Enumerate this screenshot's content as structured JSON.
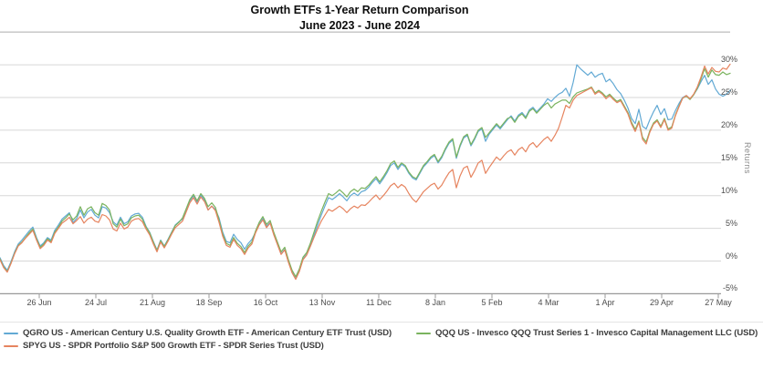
{
  "title": {
    "line1": "Growth ETFs 1-Year Return Comparison",
    "line2": "June 2023 - June 2024"
  },
  "chart_data": {
    "type": "line",
    "title": "Growth ETFs 1-Year Return Comparison",
    "subtitle": "June 2023 - June 2024",
    "ylabel": "Returns",
    "y_unit": "%",
    "ylim": [
      -5,
      35
    ],
    "grid": true,
    "legend_position": "bottom",
    "ytick_values": [
      30,
      25,
      20,
      15,
      10,
      5,
      0,
      -5
    ],
    "ytick_labels": [
      "30%",
      "25%",
      "20%",
      "15%",
      "10%",
      "5%",
      "0%",
      "-5%"
    ],
    "xtick_labels": [
      "26 Jun",
      "24 Jul",
      "21 Aug",
      "18 Sep",
      "16 Oct",
      "13 Nov",
      "11 Dec",
      "8 Jan",
      "5 Feb",
      "4 Mar",
      "1 Apr",
      "29 Apr",
      "27 May"
    ],
    "x_start": 0,
    "x_step": 4,
    "series": [
      {
        "id": "QGRO",
        "name": "QGRO US",
        "legend_label": "QGRO US - American Century U.S. Quality Growth ETF - American Century ETF Trust (USD)",
        "color": "#62a9d4",
        "values": [
          0.5,
          -0.7,
          -1.4,
          -0.1,
          1.4,
          2.6,
          3.2,
          3.9,
          4.6,
          5.2,
          3.6,
          2.3,
          2.8,
          3.6,
          3.2,
          4.7,
          5.5,
          6.4,
          6.9,
          7.4,
          5.9,
          6.5,
          7.8,
          6.6,
          7.5,
          7.9,
          7.0,
          6.6,
          8.3,
          8.1,
          7.4,
          6.0,
          5.5,
          6.7,
          5.7,
          6.0,
          6.9,
          7.2,
          7.3,
          6.7,
          5.3,
          4.4,
          3.0,
          1.7,
          3.2,
          2.3,
          3.3,
          4.4,
          5.5,
          6.0,
          6.4,
          7.8,
          9.2,
          10.0,
          9.0,
          10.1,
          9.3,
          7.8,
          8.4,
          7.9,
          6.6,
          4.4,
          3.0,
          2.8,
          4.1,
          3.3,
          2.8,
          1.8,
          2.7,
          3.3,
          4.4,
          5.6,
          6.5,
          5.3,
          5.9,
          4.1,
          2.6,
          1.1,
          1.8,
          -0.1,
          -1.7,
          -2.7,
          -1.5,
          0.3,
          1.0,
          2.3,
          3.9,
          5.5,
          7.0,
          8.4,
          9.7,
          9.4,
          9.8,
          10.3,
          9.8,
          9.2,
          10.0,
          10.4,
          10.0,
          10.6,
          10.8,
          11.3,
          12.0,
          12.6,
          11.8,
          12.6,
          13.5,
          14.6,
          15.0,
          14.0,
          14.8,
          14.4,
          13.4,
          12.7,
          12.4,
          13.4,
          14.4,
          15.0,
          15.7,
          16.1,
          15.0,
          15.8,
          17.0,
          18.0,
          18.5,
          15.7,
          17.5,
          18.8,
          19.2,
          17.6,
          18.6,
          19.8,
          20.2,
          18.3,
          19.4,
          20.1,
          20.8,
          20.2,
          20.9,
          21.6,
          22.2,
          21.4,
          22.3,
          22.7,
          22.0,
          23.1,
          23.5,
          22.8,
          23.4,
          24.0,
          24.8,
          24.4,
          25.0,
          25.5,
          25.8,
          26.4,
          25.2,
          27.3,
          30.0,
          29.4,
          28.9,
          28.4,
          28.9,
          28.1,
          28.5,
          28.7,
          27.4,
          27.8,
          27.1,
          26.2,
          25.6,
          24.6,
          23.4,
          21.8,
          21.0,
          23.2,
          20.6,
          20.2,
          21.6,
          22.8,
          23.8,
          22.4,
          23.3,
          21.6,
          21.7,
          23.0,
          24.1,
          25.0,
          25.3,
          24.8,
          25.4,
          26.3,
          27.4,
          28.4,
          27.0,
          27.7,
          26.3,
          25.5,
          25.2,
          25.5,
          26.1
        ]
      },
      {
        "id": "QQQ",
        "name": "QQQ US",
        "legend_label": "QQQ US - Invesco QQQ Trust Series 1 - Invesco Capital Management LLC (USD)",
        "color": "#7ab35e",
        "values": [
          0.3,
          -0.9,
          -1.6,
          -0.3,
          1.2,
          2.4,
          2.9,
          3.6,
          4.3,
          4.9,
          3.4,
          2.1,
          2.6,
          3.4,
          3.0,
          4.4,
          5.2,
          6.1,
          6.6,
          7.2,
          6.3,
          6.9,
          8.3,
          7.0,
          8.0,
          8.3,
          7.4,
          7.0,
          8.8,
          8.5,
          7.8,
          5.7,
          5.2,
          6.4,
          5.4,
          5.7,
          6.6,
          6.9,
          7.0,
          6.4,
          5.2,
          4.3,
          2.9,
          1.6,
          3.1,
          2.2,
          3.2,
          4.3,
          5.4,
          5.9,
          6.6,
          8.0,
          9.4,
          10.2,
          9.2,
          10.3,
          9.6,
          8.3,
          8.9,
          8.2,
          6.3,
          4.1,
          2.7,
          2.4,
          3.6,
          2.7,
          2.2,
          1.3,
          2.3,
          2.9,
          4.6,
          5.9,
          6.8,
          5.6,
          6.2,
          4.4,
          2.9,
          1.4,
          2.1,
          0.2,
          -1.4,
          -2.4,
          -1.2,
          0.6,
          1.3,
          2.7,
          4.4,
          6.1,
          7.6,
          9.0,
          10.3,
          10.0,
          10.4,
          10.9,
          10.4,
          9.8,
          10.6,
          11.0,
          10.6,
          11.2,
          11.1,
          11.6,
          12.3,
          12.9,
          12.1,
          12.9,
          13.8,
          14.9,
          15.3,
          14.3,
          15.0,
          14.6,
          13.6,
          12.9,
          12.6,
          13.6,
          14.6,
          15.2,
          15.9,
          16.3,
          15.2,
          16.0,
          17.2,
          18.2,
          18.7,
          15.9,
          17.7,
          19.0,
          19.4,
          17.8,
          18.8,
          20.0,
          20.4,
          18.9,
          19.6,
          20.3,
          21.0,
          20.4,
          21.1,
          21.8,
          22.0,
          21.2,
          22.1,
          22.5,
          21.8,
          22.9,
          23.3,
          22.6,
          23.2,
          23.8,
          24.2,
          23.4,
          24.0,
          24.3,
          24.6,
          24.6,
          24.1,
          25.1,
          25.7,
          25.9,
          26.1,
          26.3,
          26.6,
          25.7,
          26.1,
          25.7,
          25.1,
          25.5,
          24.9,
          24.4,
          24.7,
          23.7,
          22.7,
          21.2,
          20.1,
          21.4,
          18.9,
          18.2,
          19.9,
          21.1,
          21.6,
          20.6,
          21.8,
          20.2,
          20.5,
          22.3,
          23.7,
          24.9,
          25.2,
          24.7,
          25.4,
          26.4,
          27.8,
          29.4,
          28.1,
          29.2,
          28.5,
          28.4,
          28.9,
          28.5,
          28.7
        ]
      },
      {
        "id": "SPYG",
        "name": "SPYG US",
        "legend_label": "SPYG US - SPDR Portfolio S&P 500 Growth ETF - SPDR Series Trust (USD)",
        "color": "#e6845f",
        "values": [
          0.2,
          -1.0,
          -1.7,
          -0.4,
          1.1,
          2.3,
          2.8,
          3.5,
          4.1,
          4.7,
          3.2,
          1.9,
          2.4,
          3.2,
          2.8,
          4.2,
          5.0,
          5.8,
          6.2,
          6.7,
          5.7,
          6.2,
          6.8,
          5.8,
          6.4,
          6.7,
          6.1,
          5.9,
          7.1,
          6.9,
          6.3,
          4.9,
          4.6,
          5.8,
          4.9,
          5.2,
          6.1,
          6.4,
          6.5,
          6.0,
          4.9,
          4.0,
          2.6,
          1.4,
          2.9,
          2.0,
          3.0,
          4.1,
          5.1,
          5.6,
          6.1,
          7.5,
          8.9,
          9.7,
          8.7,
          9.8,
          9.1,
          7.8,
          8.4,
          7.7,
          5.9,
          3.8,
          2.4,
          2.1,
          3.3,
          2.4,
          1.9,
          1.0,
          2.0,
          2.6,
          4.3,
          5.5,
          6.3,
          5.1,
          5.8,
          4.0,
          2.5,
          1.0,
          1.7,
          -0.2,
          -1.8,
          -2.8,
          -1.6,
          0.2,
          0.9,
          2.2,
          3.6,
          4.9,
          6.1,
          7.0,
          7.9,
          7.6,
          8.0,
          8.4,
          8.0,
          7.4,
          8.0,
          8.4,
          8.1,
          8.6,
          8.5,
          9.0,
          9.6,
          10.1,
          9.4,
          10.0,
          10.7,
          11.5,
          11.9,
          11.2,
          11.7,
          11.3,
          10.3,
          9.5,
          9.0,
          9.8,
          10.6,
          11.1,
          11.6,
          11.9,
          11.0,
          11.6,
          12.6,
          13.5,
          14.0,
          11.2,
          13.0,
          14.2,
          14.5,
          12.8,
          13.8,
          15.0,
          15.4,
          13.4,
          14.3,
          15.1,
          15.9,
          15.4,
          16.1,
          16.7,
          17.0,
          16.2,
          17.0,
          17.4,
          16.7,
          17.7,
          18.1,
          17.4,
          18.0,
          18.6,
          19.0,
          18.3,
          19.2,
          20.3,
          22.0,
          23.8,
          23.4,
          24.6,
          25.3,
          25.6,
          25.9,
          26.2,
          26.5,
          25.5,
          25.9,
          25.5,
          24.8,
          25.3,
          24.7,
          24.2,
          24.5,
          23.5,
          22.5,
          20.9,
          19.8,
          21.2,
          18.6,
          17.9,
          19.7,
          20.9,
          21.4,
          20.4,
          21.6,
          20.0,
          20.3,
          22.2,
          23.6,
          24.9,
          25.3,
          24.8,
          25.5,
          26.6,
          28.1,
          29.8,
          28.6,
          29.6,
          29.0,
          28.9,
          29.5,
          29.3,
          30.1
        ]
      }
    ]
  }
}
